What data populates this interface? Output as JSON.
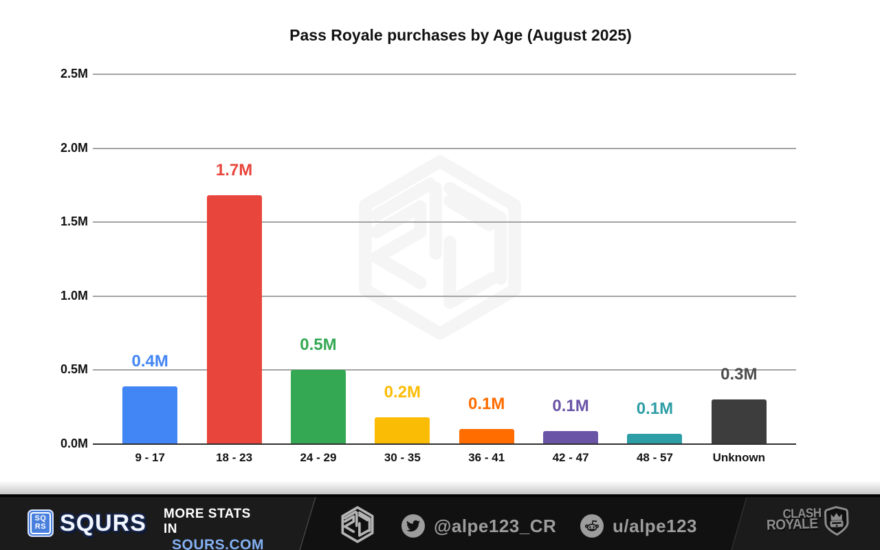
{
  "chart_data": {
    "type": "bar",
    "title": "Pass Royale purchases by Age (August 2025)",
    "categories": [
      "9 - 17",
      "18 - 23",
      "24 - 29",
      "30 - 35",
      "36 - 41",
      "42 - 47",
      "48 - 57",
      "Unknown"
    ],
    "values": [
      0.39,
      1.68,
      0.5,
      0.18,
      0.1,
      0.09,
      0.07,
      0.3
    ],
    "bar_labels": [
      "0.4M",
      "1.7M",
      "0.5M",
      "0.2M",
      "0.1M",
      "0.1M",
      "0.1M",
      "0.3M"
    ],
    "bar_colors": [
      "#4285F4",
      "#E8453C",
      "#34A853",
      "#FBBC05",
      "#FF6D01",
      "#6A54A6",
      "#2D9DA6",
      "#3D3D3D"
    ],
    "label_colors": [
      "#4285F4",
      "#E8453C",
      "#34A853",
      "#FBBC05",
      "#FF6D01",
      "#6A54A6",
      "#2D9DA6",
      "#4D4D4D"
    ],
    "ylim": [
      0,
      2.5
    ],
    "yticks": [
      "0.0M",
      "0.5M",
      "1.0M",
      "1.5M",
      "2.0M",
      "2.5M"
    ],
    "xlabel": "",
    "ylabel": "",
    "grid": "horizontal",
    "legend": "none"
  },
  "footer": {
    "brand": {
      "badge_top": "SQ",
      "badge_bottom": "RS",
      "wordmark": "SQURS"
    },
    "more_stats": {
      "line1": "MORE STATS IN",
      "line2": "SQURS.COM"
    },
    "twitter": {
      "handle": "@alpe123_CR"
    },
    "reddit": {
      "handle": "u/alpe123"
    },
    "clash_royale": {
      "line1": "CLASH",
      "line2": "ROYALE"
    }
  },
  "colors": {
    "accent_blue": "#4a80dd",
    "link_blue": "#84b1f4",
    "footer_dark": "#1b1b1b",
    "footer_darker": "#111111",
    "social_gray": "#9d9d9d",
    "watermark_gray": "#f5f5f5"
  }
}
